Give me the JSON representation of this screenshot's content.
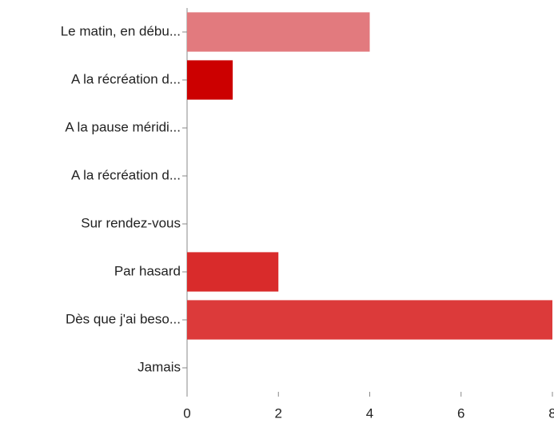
{
  "chart_data": {
    "type": "bar",
    "orientation": "horizontal",
    "categories": [
      "Le matin, en débu...",
      "A la récréation d...",
      "A la pause méridi...",
      "A la récréation d...",
      "Sur rendez-vous",
      "Par hasard",
      "Dès que j'ai beso...",
      "Jamais"
    ],
    "values": [
      4,
      1,
      0,
      0,
      0,
      2,
      8,
      0
    ],
    "colors": [
      "#e27a7e",
      "#cc0000",
      "#d42a2a",
      "#d63232",
      "#d83434",
      "#d92b2b",
      "#dc3a3a",
      "#dc3a3a"
    ],
    "xlim": [
      0,
      8
    ],
    "xticks": [
      0,
      2,
      4,
      6,
      8
    ],
    "grid": false
  }
}
